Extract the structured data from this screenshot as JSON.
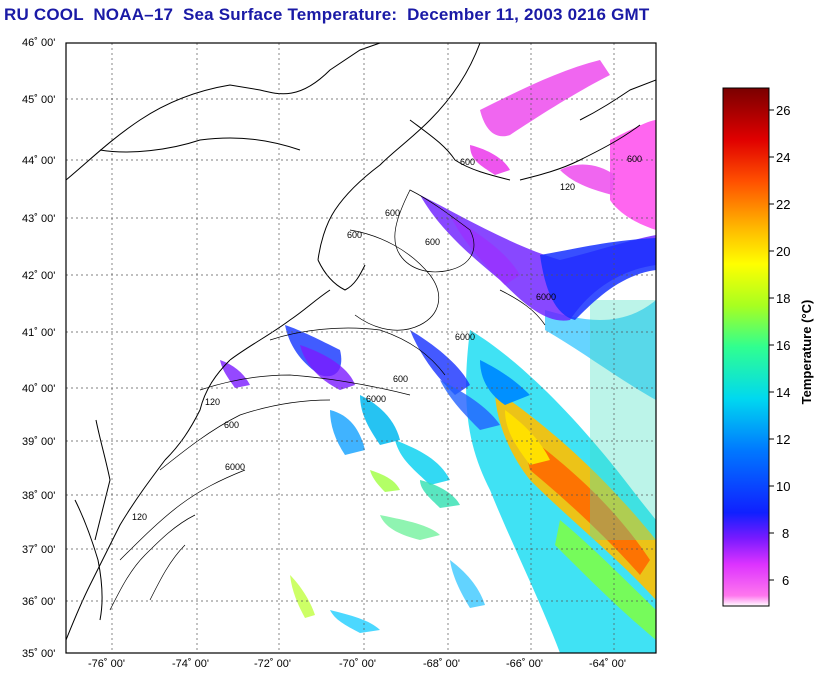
{
  "title": "RU COOL  NOAA–17  Sea Surface Temperature:  December 11, 2003 0216 GMT",
  "map": {
    "lat_labels": [
      "46˚ 00'",
      "45˚ 00'",
      "44˚ 00'",
      "43˚ 00'",
      "42˚ 00'",
      "41˚ 00'",
      "40˚ 00'",
      "39˚ 00'",
      "38˚ 00'",
      "37˚ 00'",
      "36˚ 00'",
      "35˚ 00'"
    ],
    "lon_labels": [
      "-76˚ 00'",
      "-74˚ 00'",
      "-72˚ 00'",
      "-70˚ 00'",
      "-68˚ 00'",
      "-66˚ 00'",
      "-64˚ 00'"
    ],
    "bathymetry_labels": [
      "600",
      "600",
      "600",
      "600",
      "600",
      "120",
      "6000",
      "6000",
      "6000",
      "600",
      "120",
      "600",
      "6000",
      "120"
    ]
  },
  "colorbar": {
    "title": "Temperature (°C)",
    "ticks": [
      "26",
      "24",
      "22",
      "20",
      "18",
      "16",
      "14",
      "12",
      "10",
      "8",
      "6"
    ],
    "colors": [
      "#ff66ee",
      "#cc33ff",
      "#6a1aff",
      "#0030ff",
      "#0090ff",
      "#00e0e0",
      "#40ff80",
      "#c0ff00",
      "#ffff00",
      "#ffb000",
      "#ff4000",
      "#dd0000",
      "#8b0000"
    ]
  }
}
